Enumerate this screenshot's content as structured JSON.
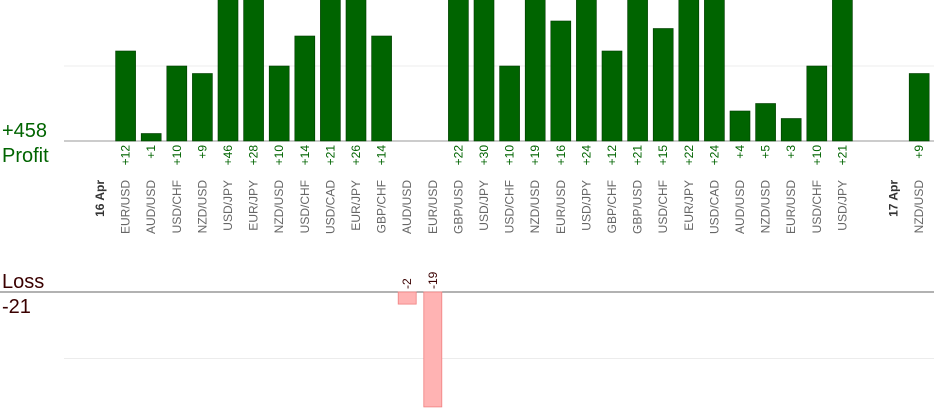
{
  "chart_data": {
    "type": "bar",
    "categories": [
      "16 Apr",
      "EUR/USD",
      "AUD/USD",
      "USD/CHF",
      "NZD/USD",
      "USD/JPY",
      "EUR/JPY",
      "NZD/USD",
      "USD/CHF",
      "USD/CAD",
      "EUR/JPY",
      "GBP/CHF",
      "AUD/USD",
      "EUR/USD",
      "GBP/USD",
      "USD/JPY",
      "USD/CHF",
      "NZD/USD",
      "EUR/USD",
      "USD/JPY",
      "GBP/CHF",
      "GBP/USD",
      "USD/CHF",
      "EUR/JPY",
      "USD/CAD",
      "AUD/USD",
      "NZD/USD",
      "EUR/USD",
      "USD/CHF",
      "USD/JPY",
      null,
      "17 Apr",
      "NZD/USD"
    ],
    "values": [
      null,
      12,
      1,
      10,
      9,
      46,
      28,
      10,
      14,
      21,
      26,
      14,
      -2,
      -19,
      22,
      30,
      10,
      19,
      16,
      24,
      12,
      21,
      15,
      22,
      24,
      4,
      5,
      3,
      10,
      21,
      null,
      null,
      9
    ],
    "value_labels": [
      null,
      "+12",
      "+1",
      "+10",
      "+9",
      "+46",
      "+28",
      "+10",
      "+14",
      "+21",
      "+26",
      "+14",
      "-2",
      "-19",
      "+22",
      "+30",
      "+10",
      "+19",
      "+16",
      "+24",
      "+12",
      "+21",
      "+15",
      "+22",
      "+24",
      "+4",
      "+5",
      "+3",
      "+10",
      "+21",
      null,
      null,
      "+9"
    ],
    "profit_label": "Profit",
    "loss_label": "Loss",
    "profit_total": {
      "value": 458,
      "label": "+458"
    },
    "loss_total": -21,
    "profit_color": "#006400",
    "loss_color": "#ffb3b3",
    "profit_ylim": [
      0,
      18.8
    ],
    "profit_yticks": [
      10
    ],
    "loss_ylim": [
      -21,
      0
    ],
    "loss_yticks": [
      -11
    ],
    "grid": true
  }
}
